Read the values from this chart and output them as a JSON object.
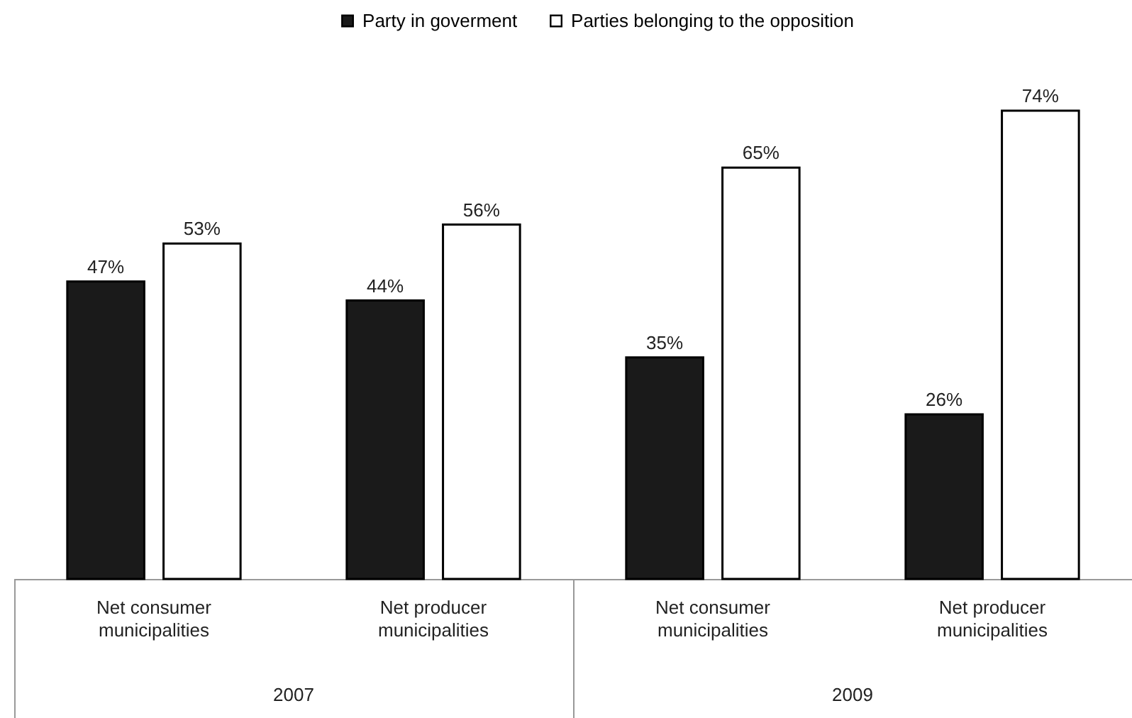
{
  "chart_data": {
    "type": "bar",
    "categories": [
      "Net consumer municipalities",
      "Net producer municipalities",
      "Net consumer municipalities",
      "Net producer municipalities"
    ],
    "series": [
      {
        "name": "Party in goverment",
        "color": "#1a1a1a",
        "values": [
          47,
          44,
          35,
          26
        ],
        "value_labels": [
          "47%",
          "44%",
          "35%",
          "26%"
        ]
      },
      {
        "name": "Parties belonging to the opposition",
        "color": "#ffffff",
        "values": [
          53,
          56,
          65,
          74
        ],
        "value_labels": [
          "53%",
          "56%",
          "65%",
          "74%"
        ]
      }
    ],
    "annotations": [
      "2007",
      "2009"
    ],
    "legend": "top"
  }
}
